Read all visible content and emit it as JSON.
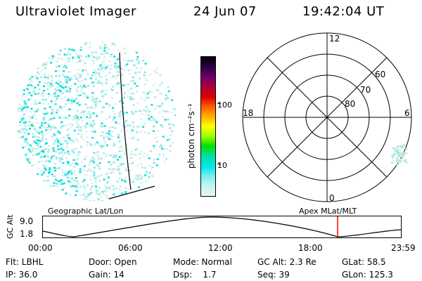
{
  "header": {
    "instrument": "Ultraviolet Imager",
    "date": "24 Jun 07",
    "time": "19:42:04 UT"
  },
  "colorbar": {
    "label": "photon cm⁻²s⁻¹",
    "ticks": [
      "100",
      "10"
    ],
    "colors": [
      "#000000",
      "#2a0040",
      "#6a006a",
      "#a8003c",
      "#e00000",
      "#ff6000",
      "#ffb000",
      "#ffff00",
      "#a0ff00",
      "#00e000",
      "#00e0a0",
      "#00e8e8",
      "#7af0f0",
      "#c8f4f4",
      "#e8f4f4"
    ]
  },
  "polar_grid": {
    "lat_labels": [
      "80",
      "70",
      "60"
    ],
    "mlt_labels": {
      "top": "12",
      "bottom": "0",
      "left": "18",
      "right": "6"
    }
  },
  "panels": {
    "left_label": "Geographic Lat/Lon",
    "right_label": "Apex MLat/MLT"
  },
  "altitude_plot": {
    "axis_label": "GC Alt",
    "y_ticks": [
      "9.0",
      "1.8"
    ],
    "x_ticks": [
      "00:00",
      "06:00",
      "12:00",
      "18:00",
      "23:59"
    ],
    "current_time_color": "#ff0000"
  },
  "status": {
    "flt": "Flt: LBHL",
    "door": "Door: Open",
    "mode": "Mode: Normal",
    "gc_alt": "GC Alt: 2.3 Re",
    "glat": "GLat: 58.5",
    "ip": "IP: 36.0",
    "gain": "Gain: 14",
    "dsp": "Dsp:    1.7",
    "seq": "Seq: 39",
    "glon": "GLon: 125.3"
  }
}
